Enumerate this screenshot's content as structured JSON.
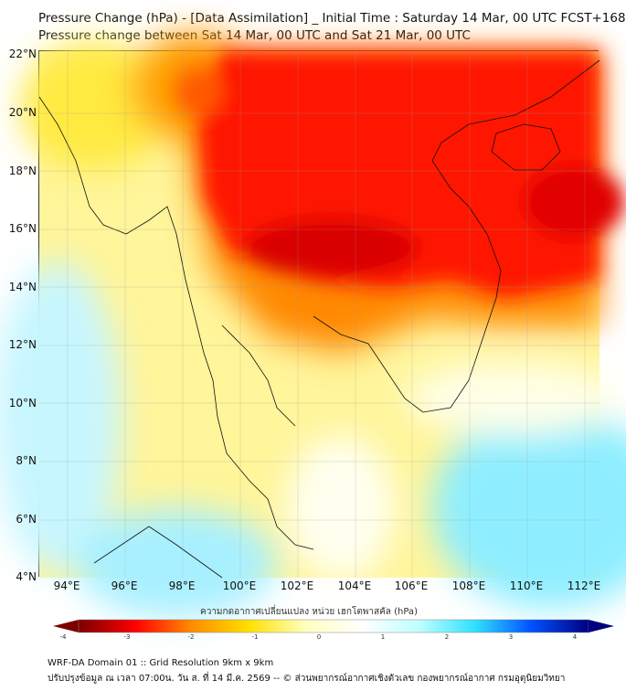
{
  "title": {
    "line1": "Pressure Change (hPa) - [Data Assimilation] _ Initial Time : Saturday 14 Mar, 00 UTC FCST+168",
    "line2": "Pressure change between Sat 14 Mar, 00 UTC and Sat 21 Mar, 00 UTC"
  },
  "axes": {
    "lat_labels": [
      "22°N",
      "20°N",
      "18°N",
      "16°N",
      "14°N",
      "12°N",
      "10°N",
      "8°N",
      "6°N",
      "4°N"
    ],
    "lon_labels": [
      "94°E",
      "96°E",
      "98°E",
      "100°E",
      "102°E",
      "104°E",
      "106°E",
      "108°E",
      "110°E",
      "112°E"
    ]
  },
  "colorbar": {
    "title": "ความกดอากาศเปลี่ยนแปลง หน่วย เฮกโตพาสคัล (hPa)",
    "ticks": [
      "-4",
      "-3",
      "-2",
      "-1",
      "0",
      "1",
      "2",
      "3",
      "4"
    ],
    "range": [
      -4,
      4
    ],
    "colors": [
      "#7a0000",
      "#ff0000",
      "#ff8c00",
      "#ffe000",
      "#ffffc0",
      "#ffffff",
      "#c0ffff",
      "#30e0ff",
      "#0050ff",
      "#000080"
    ]
  },
  "footer": {
    "line1": "WRF-DA Domain 01 :: Grid Resolution 9km x 9km",
    "line2": "ปรับปรุงข้อมูล ณ เวลา 07:00น. วัน ส. ที่ 14 มี.ค. 2569 -- © ส่วนพยากรณ์อากาศเชิงตัวเลข กองพยากรณ์อากาศ กรมอุตุนิยมวิทยา"
  }
}
